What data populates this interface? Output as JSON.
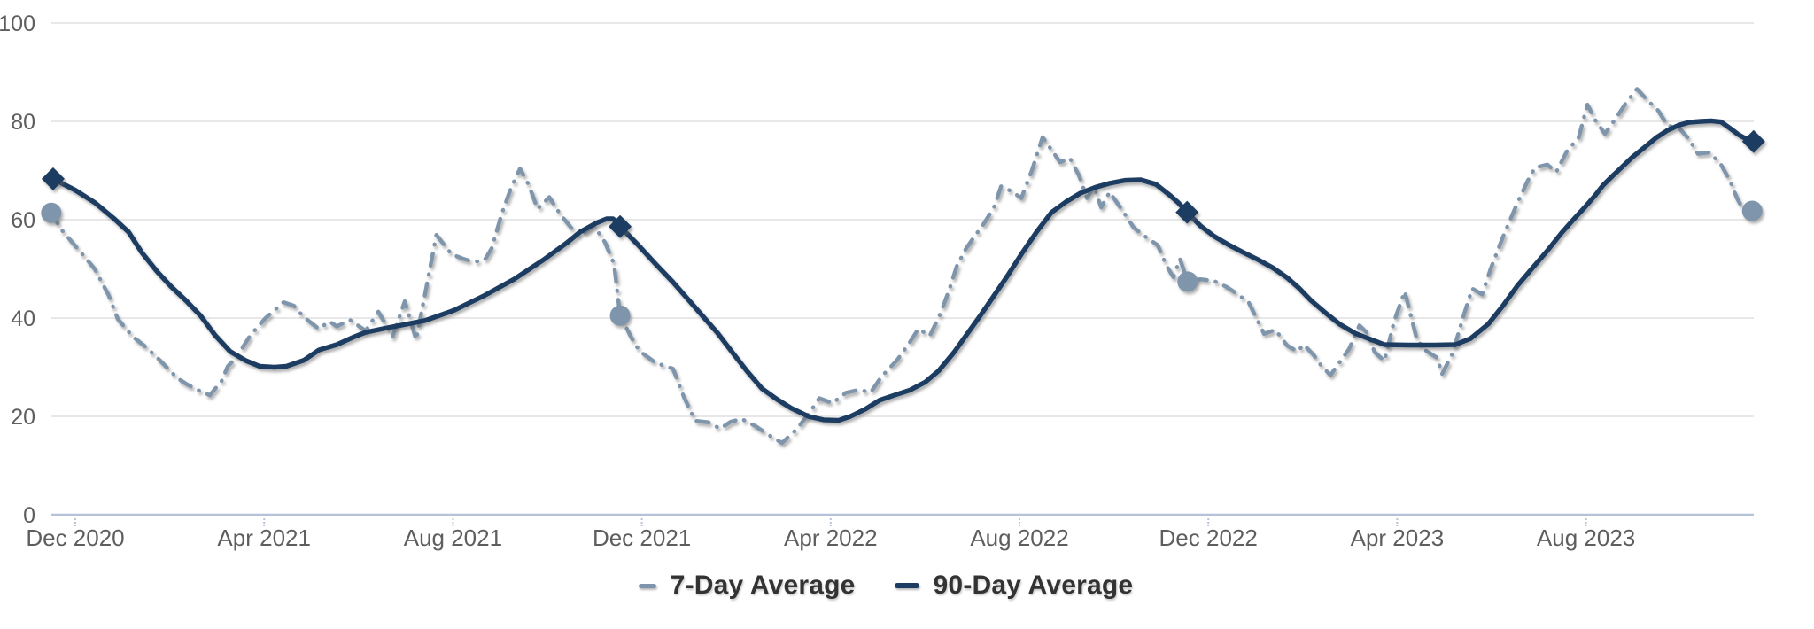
{
  "chart_data": {
    "type": "line",
    "title": "",
    "x_axis": {
      "unit": "months_since_dec_2020_tick",
      "tick_positions": [
        0,
        4,
        8,
        12,
        16,
        20,
        24,
        28,
        32
      ],
      "tick_labels": [
        "Dec 2020",
        "Apr 2021",
        "Aug 2021",
        "Dec 2021",
        "Apr 2022",
        "Aug 2022",
        "Dec 2022",
        "Apr 2023",
        "Aug 2023"
      ],
      "range": [
        -0.6,
        35.75
      ]
    },
    "y_axis": {
      "tick_values": [
        0,
        20,
        40,
        60,
        80,
        100
      ],
      "range": [
        0,
        100
      ]
    },
    "grid": true,
    "legend_position": "bottom-center",
    "series": [
      {
        "name": "7-Day Average",
        "color": "#7e95ab",
        "line_style": "dash-dot",
        "marker_shape": "circle",
        "points": [
          [
            -0.51,
            61.4
          ],
          [
            -0.28,
            57.8
          ],
          [
            0.15,
            53
          ],
          [
            0.41,
            50
          ],
          [
            0.71,
            44.6
          ],
          [
            0.9,
            39.8
          ],
          [
            1.22,
            36.2
          ],
          [
            1.46,
            34.4
          ],
          [
            1.73,
            32
          ],
          [
            2.16,
            27.8
          ],
          [
            2.35,
            26.6
          ],
          [
            2.63,
            25.2
          ],
          [
            2.85,
            24.3
          ],
          [
            3.1,
            27.2
          ],
          [
            3.23,
            30.2
          ],
          [
            3.41,
            32
          ],
          [
            3.71,
            36.5
          ],
          [
            4.03,
            40
          ],
          [
            4.41,
            43.2
          ],
          [
            4.63,
            42.5
          ],
          [
            4.84,
            40.2
          ],
          [
            5.16,
            37.8
          ],
          [
            5.38,
            39.3
          ],
          [
            5.54,
            38.3
          ],
          [
            5.82,
            39.6
          ],
          [
            6.15,
            37.4
          ],
          [
            6.42,
            41.3
          ],
          [
            6.72,
            36.2
          ],
          [
            6.98,
            43.4
          ],
          [
            7.22,
            35.6
          ],
          [
            7.41,
            45
          ],
          [
            7.65,
            56.9
          ],
          [
            7.97,
            53
          ],
          [
            8.2,
            52.1
          ],
          [
            8.44,
            51.4
          ],
          [
            8.67,
            51.8
          ],
          [
            8.82,
            54.2
          ],
          [
            9.04,
            61.4
          ],
          [
            9.23,
            66.5
          ],
          [
            9.42,
            70.4
          ],
          [
            9.61,
            67
          ],
          [
            9.79,
            62.2
          ],
          [
            10.04,
            64.6
          ],
          [
            10.28,
            61
          ],
          [
            10.51,
            58.3
          ],
          [
            10.69,
            56.6
          ],
          [
            10.98,
            58.9
          ],
          [
            11.22,
            55.4
          ],
          [
            11.41,
            51
          ],
          [
            11.54,
            40.5
          ],
          [
            11.78,
            36
          ],
          [
            11.95,
            33.3
          ],
          [
            12.29,
            30.9
          ],
          [
            12.66,
            29.7
          ],
          [
            12.89,
            24
          ],
          [
            13.13,
            19.1
          ],
          [
            13.41,
            18.8
          ],
          [
            13.66,
            17.5
          ],
          [
            13.88,
            18.9
          ],
          [
            14.11,
            19.5
          ],
          [
            14.41,
            18
          ],
          [
            14.69,
            16.2
          ],
          [
            14.97,
            14.6
          ],
          [
            15.29,
            17.5
          ],
          [
            15.57,
            21
          ],
          [
            15.76,
            23.7
          ],
          [
            16.04,
            22.7
          ],
          [
            16.32,
            24.8
          ],
          [
            16.6,
            25.4
          ],
          [
            16.85,
            24.9
          ],
          [
            17.07,
            28
          ],
          [
            17.41,
            31.5
          ],
          [
            17.67,
            35
          ],
          [
            17.86,
            37.8
          ],
          [
            18.1,
            36.4
          ],
          [
            18.33,
            41
          ],
          [
            18.52,
            46
          ],
          [
            18.67,
            50.5
          ],
          [
            18.86,
            54
          ],
          [
            19.04,
            56.5
          ],
          [
            19.23,
            59
          ],
          [
            19.46,
            62.5
          ],
          [
            19.61,
            66.8
          ],
          [
            19.83,
            65.8
          ],
          [
            20.04,
            64.4
          ],
          [
            20.26,
            70
          ],
          [
            20.49,
            76.8
          ],
          [
            20.73,
            73.5
          ],
          [
            20.86,
            71.7
          ],
          [
            21.07,
            72.5
          ],
          [
            21.26,
            69
          ],
          [
            21.43,
            64.4
          ],
          [
            21.58,
            66.8
          ],
          [
            21.73,
            62.5
          ],
          [
            21.91,
            65.6
          ],
          [
            22.18,
            61.9
          ],
          [
            22.42,
            58.4
          ],
          [
            22.66,
            56.6
          ],
          [
            22.93,
            54.8
          ],
          [
            23.11,
            50.7
          ],
          [
            23.26,
            48.3
          ],
          [
            23.4,
            52
          ],
          [
            23.56,
            47.4
          ],
          [
            23.83,
            47.9
          ],
          [
            24.11,
            47.6
          ],
          [
            24.39,
            46.3
          ],
          [
            24.63,
            44.8
          ],
          [
            24.86,
            43.1
          ],
          [
            25.18,
            36.8
          ],
          [
            25.42,
            37.6
          ],
          [
            25.67,
            34.4
          ],
          [
            25.89,
            33.2
          ],
          [
            26.02,
            34.6
          ],
          [
            26.23,
            32.5
          ],
          [
            26.4,
            30.2
          ],
          [
            26.59,
            28.4
          ],
          [
            26.98,
            33.7
          ],
          [
            27.2,
            38.5
          ],
          [
            27.39,
            36.7
          ],
          [
            27.52,
            33.1
          ],
          [
            27.73,
            31.3
          ],
          [
            27.94,
            39.5
          ],
          [
            28.16,
            45.4
          ],
          [
            28.42,
            35.5
          ],
          [
            28.62,
            33.3
          ],
          [
            28.85,
            31.9
          ],
          [
            28.95,
            28.6
          ],
          [
            29.17,
            32.8
          ],
          [
            29.42,
            40.9
          ],
          [
            29.59,
            46
          ],
          [
            29.8,
            44.8
          ],
          [
            29.98,
            50
          ],
          [
            30.24,
            56.5
          ],
          [
            30.54,
            63.3
          ],
          [
            30.77,
            68
          ],
          [
            30.92,
            70.6
          ],
          [
            31.18,
            71.2
          ],
          [
            31.37,
            69.7
          ],
          [
            31.61,
            74.2
          ],
          [
            31.84,
            76.6
          ],
          [
            32.03,
            83.4
          ],
          [
            32.21,
            80
          ],
          [
            32.4,
            77.5
          ],
          [
            32.61,
            80.3
          ],
          [
            32.85,
            83.8
          ],
          [
            33.08,
            86.6
          ],
          [
            33.3,
            84.3
          ],
          [
            33.53,
            82.2
          ],
          [
            33.73,
            79.1
          ],
          [
            33.96,
            78.8
          ],
          [
            34.18,
            76.4
          ],
          [
            34.37,
            73.4
          ],
          [
            34.62,
            73.7
          ],
          [
            34.86,
            71.2
          ],
          [
            35.05,
            67.9
          ],
          [
            35.2,
            64.3
          ],
          [
            35.33,
            62.1
          ],
          [
            35.52,
            61.8
          ]
        ],
        "markers": [
          [
            -0.51,
            61.4
          ],
          [
            11.54,
            40.5
          ],
          [
            23.56,
            47.4
          ],
          [
            35.52,
            61.8
          ]
        ]
      },
      {
        "name": "90-Day Average",
        "color": "#1c3c62",
        "line_style": "solid",
        "marker_shape": "diamond",
        "points": [
          [
            -0.47,
            68.3
          ],
          [
            0,
            66
          ],
          [
            0.41,
            63.5
          ],
          [
            0.81,
            60.3
          ],
          [
            1.13,
            57.5
          ],
          [
            1.41,
            53.3
          ],
          [
            1.73,
            49.5
          ],
          [
            2.03,
            46.4
          ],
          [
            2.35,
            43.5
          ],
          [
            2.66,
            40.4
          ],
          [
            2.96,
            36.5
          ],
          [
            3.28,
            33.2
          ],
          [
            3.6,
            31.4
          ],
          [
            3.9,
            30.2
          ],
          [
            4.22,
            30
          ],
          [
            4.47,
            30.2
          ],
          [
            4.84,
            31.4
          ],
          [
            5.16,
            33.5
          ],
          [
            5.54,
            34.6
          ],
          [
            5.91,
            36.2
          ],
          [
            6.15,
            37.1
          ],
          [
            6.6,
            38
          ],
          [
            7.04,
            38.8
          ],
          [
            7.41,
            39.5
          ],
          [
            8.03,
            41.6
          ],
          [
            8.67,
            44.6
          ],
          [
            9.29,
            47.9
          ],
          [
            9.91,
            51.8
          ],
          [
            10.41,
            55.3
          ],
          [
            10.69,
            57.5
          ],
          [
            11.03,
            59.3
          ],
          [
            11.26,
            60.2
          ],
          [
            11.39,
            60.2
          ],
          [
            11.54,
            58.6
          ],
          [
            11.91,
            55
          ],
          [
            12.29,
            51
          ],
          [
            12.66,
            47.3
          ],
          [
            12.98,
            43.8
          ],
          [
            13.28,
            40.5
          ],
          [
            13.6,
            37
          ],
          [
            13.92,
            33
          ],
          [
            14.22,
            29.3
          ],
          [
            14.54,
            25.7
          ],
          [
            14.86,
            23.5
          ],
          [
            15.16,
            21.7
          ],
          [
            15.53,
            20
          ],
          [
            15.85,
            19.3
          ],
          [
            16.17,
            19.2
          ],
          [
            16.42,
            20
          ],
          [
            16.74,
            21.5
          ],
          [
            17.04,
            23.3
          ],
          [
            17.41,
            24.5
          ],
          [
            17.67,
            25.3
          ],
          [
            18.01,
            27
          ],
          [
            18.29,
            29.3
          ],
          [
            18.61,
            33
          ],
          [
            18.91,
            37
          ],
          [
            19.17,
            40.5
          ],
          [
            19.42,
            44
          ],
          [
            19.74,
            48.5
          ],
          [
            20.04,
            53
          ],
          [
            20.36,
            57.5
          ],
          [
            20.68,
            61.5
          ],
          [
            20.98,
            63.6
          ],
          [
            21.29,
            65.4
          ],
          [
            21.61,
            66.6
          ],
          [
            21.91,
            67.4
          ],
          [
            22.23,
            68
          ],
          [
            22.57,
            68.1
          ],
          [
            22.89,
            67.2
          ],
          [
            23.17,
            65.1
          ],
          [
            23.36,
            63.5
          ],
          [
            23.55,
            61.5
          ],
          [
            23.83,
            58.8
          ],
          [
            24.11,
            56.7
          ],
          [
            24.43,
            54.9
          ],
          [
            24.73,
            53.4
          ],
          [
            25.05,
            51.9
          ],
          [
            25.37,
            50.2
          ],
          [
            25.67,
            48.2
          ],
          [
            25.93,
            46
          ],
          [
            26.17,
            43.6
          ],
          [
            26.49,
            41
          ],
          [
            26.79,
            38.7
          ],
          [
            27.11,
            36.9
          ],
          [
            27.43,
            35.7
          ],
          [
            27.73,
            34.6
          ],
          [
            28.24,
            34.5
          ],
          [
            28.8,
            34.5
          ],
          [
            29.23,
            34.6
          ],
          [
            29.55,
            35.8
          ],
          [
            29.93,
            38.8
          ],
          [
            30.24,
            42.5
          ],
          [
            30.54,
            46.5
          ],
          [
            30.86,
            50.1
          ],
          [
            31.18,
            53.7
          ],
          [
            31.48,
            57.3
          ],
          [
            31.73,
            60
          ],
          [
            31.99,
            62.7
          ],
          [
            32.18,
            64.8
          ],
          [
            32.36,
            67
          ],
          [
            32.55,
            68.8
          ],
          [
            32.74,
            70.5
          ],
          [
            32.98,
            72.7
          ],
          [
            33.25,
            74.8
          ],
          [
            33.49,
            76.7
          ],
          [
            33.73,
            78.2
          ],
          [
            33.96,
            79.2
          ],
          [
            34.18,
            79.8
          ],
          [
            34.43,
            80
          ],
          [
            34.65,
            80.1
          ],
          [
            34.86,
            79.9
          ],
          [
            35.05,
            78.6
          ],
          [
            35.23,
            77.3
          ],
          [
            35.4,
            76.4
          ],
          [
            35.55,
            75.9
          ]
        ],
        "markers": [
          [
            -0.47,
            68.3
          ],
          [
            11.54,
            58.6
          ],
          [
            23.55,
            61.5
          ],
          [
            35.55,
            75.9
          ]
        ]
      }
    ],
    "colors": {
      "gridline": "#e8e8e8",
      "axis_line": "#b5c2d8",
      "tick_label": "#5e5e5e",
      "legend_text": "#333333",
      "background": "#ffffff"
    }
  }
}
